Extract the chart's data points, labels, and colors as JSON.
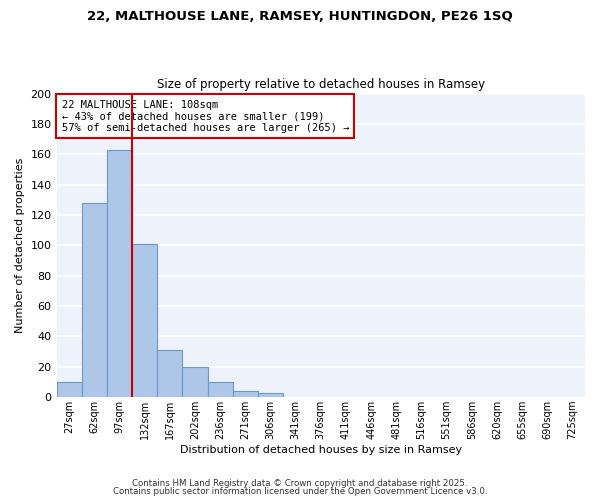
{
  "title1": "22, MALTHOUSE LANE, RAMSEY, HUNTINGDON, PE26 1SQ",
  "title2": "Size of property relative to detached houses in Ramsey",
  "xlabel": "Distribution of detached houses by size in Ramsey",
  "ylabel": "Number of detached properties",
  "bar_labels": [
    "27sqm",
    "62sqm",
    "97sqm",
    "132sqm",
    "167sqm",
    "202sqm",
    "236sqm",
    "271sqm",
    "306sqm",
    "341sqm",
    "376sqm",
    "411sqm",
    "446sqm",
    "481sqm",
    "516sqm",
    "551sqm",
    "586sqm",
    "620sqm",
    "655sqm",
    "690sqm",
    "725sqm"
  ],
  "bar_values": [
    10,
    128,
    163,
    101,
    31,
    20,
    10,
    4,
    3,
    0,
    0,
    0,
    0,
    0,
    0,
    0,
    0,
    0,
    0,
    0,
    0
  ],
  "bar_color": "#aec6e8",
  "bar_edgecolor": "#6699cc",
  "vline_x": 2.5,
  "vline_color": "#cc0000",
  "annotation_text": "22 MALTHOUSE LANE: 108sqm\n← 43% of detached houses are smaller (199)\n57% of semi-detached houses are larger (265) →",
  "annotation_box_color": "#ffffff",
  "annotation_box_edgecolor": "#cc0000",
  "ylim": [
    0,
    200
  ],
  "yticks": [
    0,
    20,
    40,
    60,
    80,
    100,
    120,
    140,
    160,
    180,
    200
  ],
  "background_color": "#eef2fb",
  "grid_color": "#ffffff",
  "footer1": "Contains HM Land Registry data © Crown copyright and database right 2025.",
  "footer2": "Contains public sector information licensed under the Open Government Licence v3.0."
}
